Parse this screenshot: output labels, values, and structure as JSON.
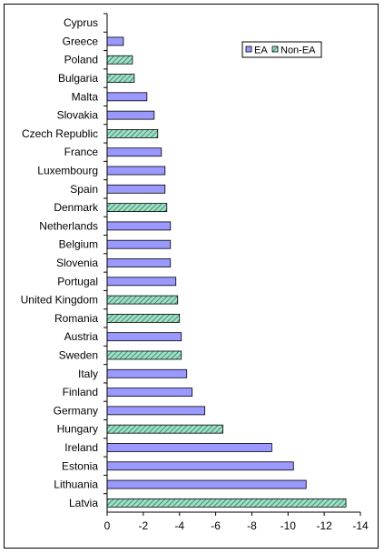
{
  "chart_data": {
    "type": "bar",
    "orientation": "horizontal",
    "title": "",
    "xlabel": "",
    "ylabel": "",
    "xlim": [
      0,
      -14
    ],
    "xticks": [
      0,
      -2,
      -4,
      -6,
      -8,
      -10,
      -12,
      -14
    ],
    "xtick_labels": [
      "0",
      "-2",
      "-4",
      "-6",
      "-8",
      "-10",
      "-12",
      "-14"
    ],
    "grid": false,
    "legend_position": "top-right",
    "series": [
      {
        "name": "EA",
        "color": "#9999ff",
        "pattern": "solid"
      },
      {
        "name": "Non-EA",
        "color": "#9ee0c4",
        "pattern": "diagonal-hatch"
      }
    ],
    "categories": [
      "Cyprus",
      "Greece",
      "Poland",
      "Bulgaria",
      "Malta",
      "Slovakia",
      "Czech Republic",
      "France",
      "Luxembourg",
      "Spain",
      "Denmark",
      "Netherlands",
      "Belgium",
      "Slovenia",
      "Portugal",
      "United Kingdom",
      "Romania",
      "Austria",
      "Sweden",
      "Italy",
      "Finland",
      "Germany",
      "Hungary",
      "Ireland",
      "Estonia",
      "Lithuania",
      "Latvia"
    ],
    "values": [
      0.0,
      -0.9,
      -1.4,
      -1.5,
      -2.2,
      -2.6,
      -2.8,
      -3.0,
      -3.2,
      -3.2,
      -3.3,
      -3.5,
      -3.5,
      -3.5,
      -3.8,
      -3.9,
      -4.0,
      -4.1,
      -4.1,
      -4.4,
      -4.7,
      -5.4,
      -6.4,
      -9.1,
      -10.3,
      -11.0,
      -13.2
    ],
    "group": [
      "EA",
      "EA",
      "Non-EA",
      "Non-EA",
      "EA",
      "EA",
      "Non-EA",
      "EA",
      "EA",
      "EA",
      "Non-EA",
      "EA",
      "EA",
      "EA",
      "EA",
      "Non-EA",
      "Non-EA",
      "EA",
      "Non-EA",
      "EA",
      "EA",
      "EA",
      "Non-EA",
      "EA",
      "EA",
      "EA",
      "Non-EA"
    ]
  }
}
